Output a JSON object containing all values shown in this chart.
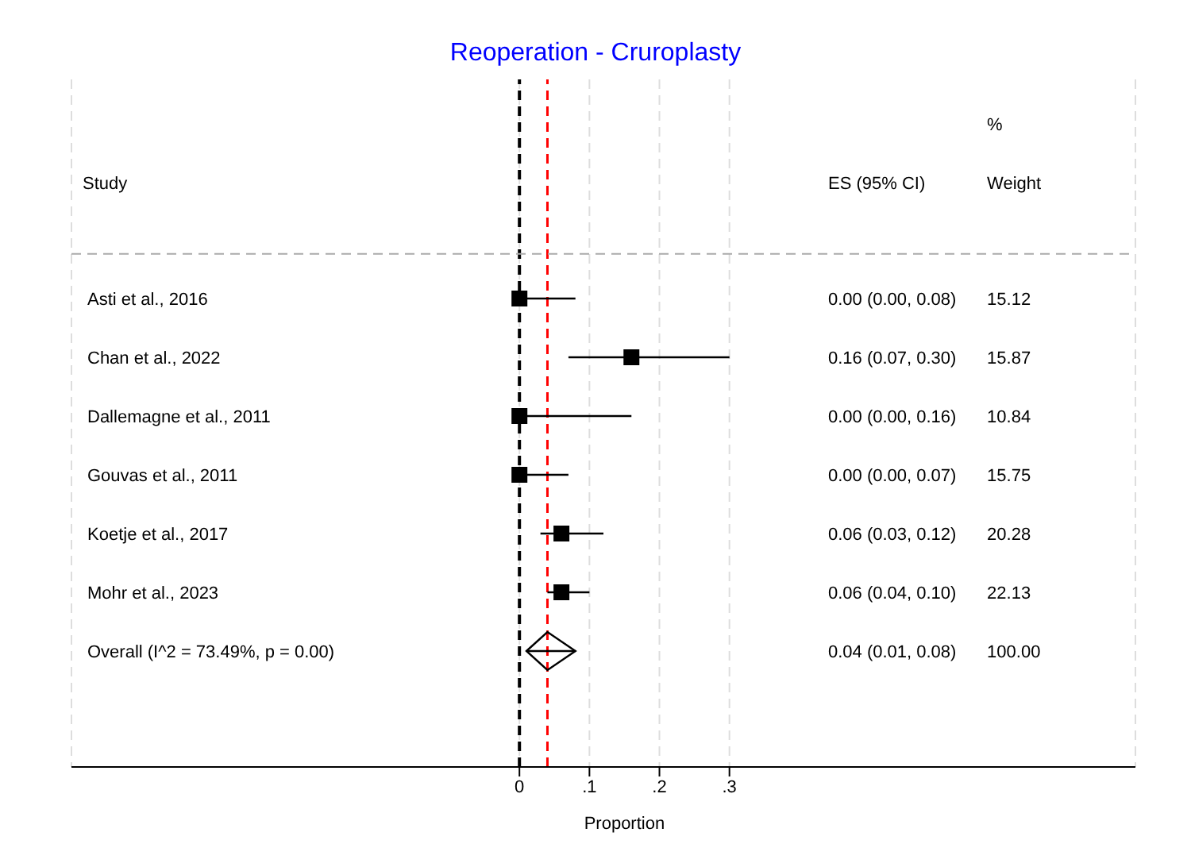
{
  "chart_data": {
    "type": "scatter",
    "orientation": "horizontal",
    "title": "Reoperation - Cruroplasty",
    "xlabel": "Proportion",
    "ylabel": "Study",
    "categories": [
      "Asti et al., 2016",
      "Chan et al., 2022",
      "Dallemagne et al., 2011",
      "Gouvas et al., 2011",
      "Koetje et al., 2017",
      "Mohr et al., 2023",
      "Overall  (I^2 = 73.49%, p = 0.00)"
    ],
    "series": [
      {
        "type": "scatter",
        "marker": "square",
        "color": "#000000",
        "values": [
          0.0,
          0.16,
          0.0,
          0.0,
          0.06,
          0.06,
          null
        ],
        "errors": [
          [
            0.0,
            0.08
          ],
          [
            0.07,
            0.3
          ],
          [
            0.0,
            0.16
          ],
          [
            0.0,
            0.07
          ],
          [
            0.03,
            0.12
          ],
          [
            0.04,
            0.1
          ],
          null
        ]
      },
      {
        "type": "scatter",
        "marker": "diamond",
        "color": "#000000",
        "values": [
          null,
          null,
          null,
          null,
          null,
          null,
          0.04
        ],
        "errors": [
          null,
          null,
          null,
          null,
          null,
          null,
          [
            0.01,
            0.08
          ]
        ]
      }
    ],
    "xlim": [
      -0.64,
      0.88
    ],
    "xticks": [
      0,
      {
        "value": 0.1,
        "label": ".1"
      },
      {
        "value": 0.2,
        "label": ".2"
      },
      {
        "value": 0.3,
        "label": ".3"
      }
    ],
    "grid": "x",
    "ref_lines": [
      {
        "axis": "x",
        "value": 0,
        "color": "#000000",
        "line_style": "dashed"
      },
      {
        "axis": "x",
        "value": 0.04,
        "color": "#ff0000",
        "line_style": "dashed"
      }
    ],
    "annotations": [
      "ES (95% CI)",
      "%",
      "Weight",
      "0.00 (0.00, 0.08)",
      "0.16 (0.07, 0.30)",
      "0.00 (0.00, 0.16)",
      "0.00 (0.00, 0.07)",
      "0.06 (0.03, 0.12)",
      "0.06 (0.04, 0.10)",
      "0.04 (0.01, 0.08)",
      "15.12",
      "15.87",
      "10.84",
      "15.75",
      "20.28",
      "22.13",
      "100.00"
    ]
  }
}
